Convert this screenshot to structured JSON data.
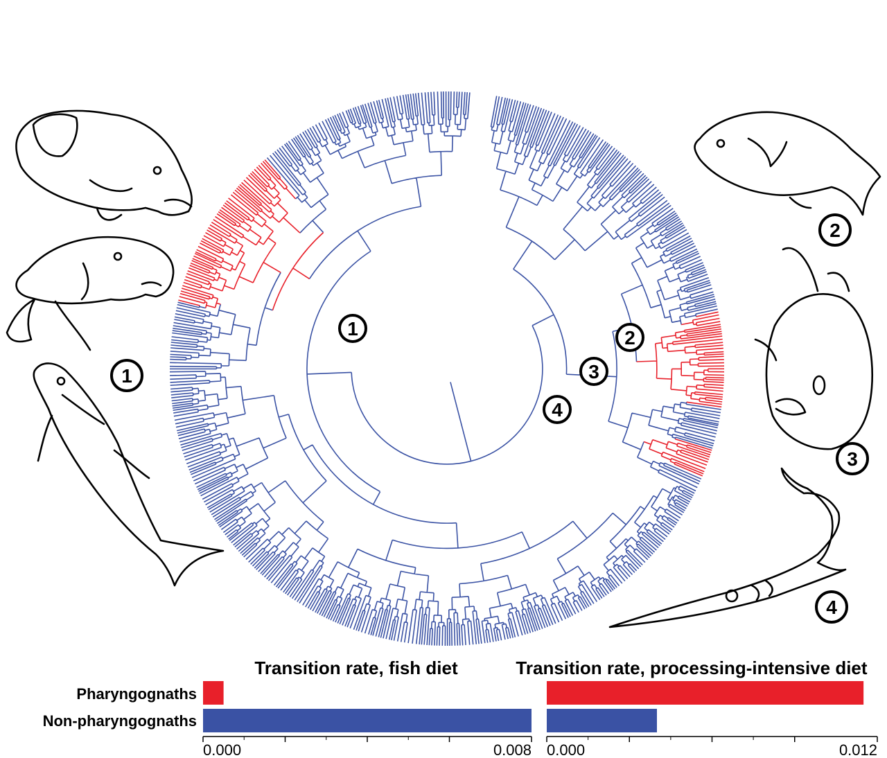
{
  "colors": {
    "pharyngognath": "#e8202a",
    "non_pharyngognath": "#3a52a4",
    "outline": "#000000"
  },
  "tree": {
    "clade_markers": [
      "1",
      "2",
      "3",
      "4"
    ],
    "illustration_labels": [
      "1",
      "2",
      "3",
      "4"
    ]
  },
  "chart_data": [
    {
      "type": "bar",
      "orientation": "horizontal",
      "title": "Transition rate, fish diet",
      "categories": [
        "Pharyngognaths",
        "Non-pharyngognaths"
      ],
      "values": [
        0.0005,
        0.008
      ],
      "colors": [
        "#e8202a",
        "#3a52a4"
      ],
      "xlim": [
        0,
        0.008
      ],
      "tick_labels": [
        "0.000",
        "0.008"
      ]
    },
    {
      "type": "bar",
      "orientation": "horizontal",
      "title": "Transition rate, processing-intensive diet",
      "categories": [
        "Pharyngognaths",
        "Non-pharyngognaths"
      ],
      "values": [
        0.0115,
        0.004
      ],
      "colors": [
        "#e8202a",
        "#3a52a4"
      ],
      "xlim": [
        0,
        0.012
      ],
      "tick_labels": [
        "0.000",
        "0.012"
      ]
    }
  ]
}
